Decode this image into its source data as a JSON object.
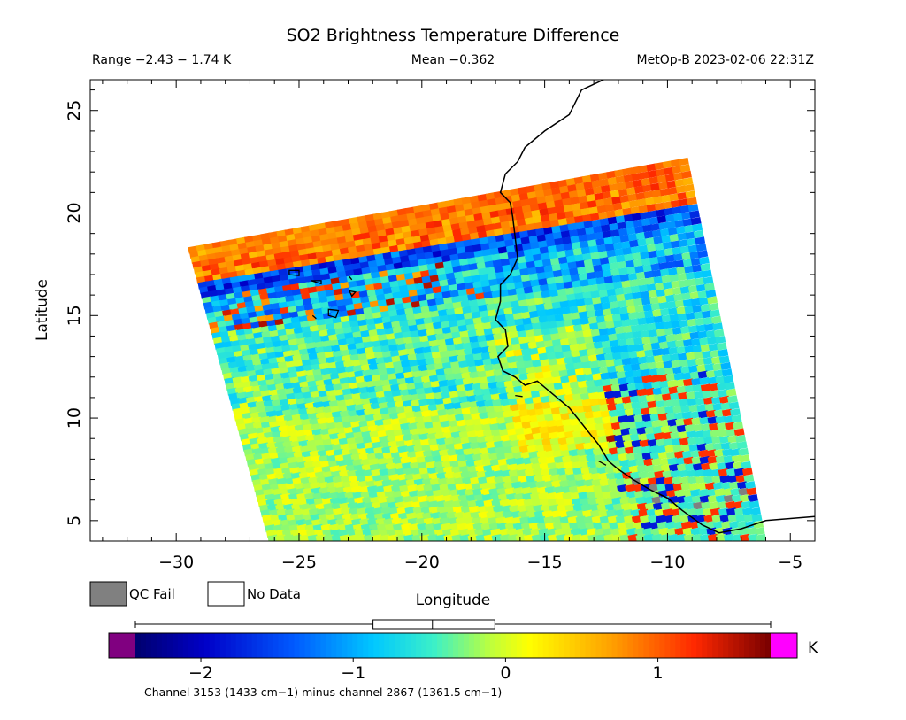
{
  "chart_data": {
    "type": "heatmap",
    "title": "SO2 Brightness Temperature Difference",
    "subtitle": {
      "range": "Range −2.43 − 1.74 K",
      "mean": "Mean −0.362",
      "satellite_time": "MetOp-B 2023-02-06 22:31Z"
    },
    "xlabel": "Longitude",
    "ylabel": "Latitude",
    "xlim": [
      -33.5,
      -4
    ],
    "ylim": [
      4,
      26.5
    ],
    "x_ticks": [
      -30,
      -25,
      -20,
      -15,
      -10,
      -5
    ],
    "x_tick_labels": [
      "−30",
      "−25",
      "−20",
      "−15",
      "−10",
      "−5"
    ],
    "y_ticks": [
      5,
      10,
      15,
      20,
      25
    ],
    "y_tick_labels": [
      "5",
      "10",
      "15",
      "20",
      "25"
    ],
    "swath_corners": {
      "top_left": [
        -29.5,
        18.3
      ],
      "top_right": [
        -9.2,
        22.7
      ],
      "bottom_right": [
        -6.0,
        4.0
      ],
      "bottom_left": [
        -26.2,
        4.0
      ]
    },
    "field_description_zones": [
      {
        "region": "northern swath edge",
        "value_range": [
          0.8,
          1.7
        ]
      },
      {
        "region": "band just south of edge",
        "value_range": [
          -2.0,
          -1.0
        ]
      },
      {
        "region": "central swath",
        "value_range": [
          -1.0,
          0.2
        ]
      },
      {
        "region": "southwest swath",
        "value_range": [
          -0.2,
          0.1
        ]
      }
    ],
    "colorbar": {
      "min": -2.43,
      "max": 1.74,
      "ticks": [
        -2,
        -1,
        0,
        1
      ],
      "tick_labels": [
        "−2",
        "−1",
        "0",
        "1"
      ],
      "unit": "K",
      "box_stats": {
        "whisker_low": -2.43,
        "q1": -0.87,
        "median": -0.48,
        "q3": -0.07,
        "whisker_high": 1.74
      },
      "caption": "Channel 3153 (1433 cm−1) minus channel 2867 (1361.5 cm−1)"
    },
    "legend": [
      {
        "label": "QC Fail",
        "color": "#808080"
      },
      {
        "label": "No Data",
        "color": "#ffffff"
      }
    ],
    "coastline_west_africa": [
      [
        -12.6,
        26.5
      ],
      [
        -13.5,
        26.0
      ],
      [
        -14.0,
        24.8
      ],
      [
        -15.0,
        24.0
      ],
      [
        -15.8,
        23.2
      ],
      [
        -16.1,
        22.5
      ],
      [
        -16.6,
        21.9
      ],
      [
        -16.8,
        21.0
      ],
      [
        -16.4,
        20.5
      ],
      [
        -16.3,
        19.8
      ],
      [
        -16.2,
        18.8
      ],
      [
        -16.1,
        17.8
      ],
      [
        -16.4,
        17.0
      ],
      [
        -16.8,
        16.5
      ],
      [
        -16.8,
        15.7
      ],
      [
        -17.0,
        14.8
      ],
      [
        -16.6,
        14.3
      ],
      [
        -16.5,
        13.5
      ],
      [
        -16.9,
        13.0
      ],
      [
        -16.7,
        12.3
      ],
      [
        -16.2,
        12.0
      ],
      [
        -15.8,
        11.6
      ],
      [
        -15.3,
        11.8
      ],
      [
        -15.0,
        11.5
      ],
      [
        -14.5,
        11.0
      ],
      [
        -14.0,
        10.5
      ],
      [
        -13.6,
        9.9
      ],
      [
        -13.2,
        9.3
      ],
      [
        -12.8,
        8.7
      ],
      [
        -12.4,
        7.9
      ],
      [
        -12.0,
        7.5
      ],
      [
        -11.4,
        7.0
      ],
      [
        -10.7,
        6.5
      ],
      [
        -10.0,
        6.1
      ],
      [
        -9.4,
        5.5
      ],
      [
        -8.6,
        4.8
      ],
      [
        -7.9,
        4.4
      ],
      [
        -7.0,
        4.6
      ],
      [
        -6.0,
        5.0
      ],
      [
        -5.0,
        5.1
      ],
      [
        -4.0,
        5.2
      ]
    ],
    "islands": [
      {
        "name": "Santo Antao",
        "points": [
          [
            -25.4,
            17.2
          ],
          [
            -25.0,
            17.2
          ],
          [
            -25.0,
            16.95
          ],
          [
            -25.4,
            17.0
          ]
        ]
      },
      {
        "name": "Sao Nicolau",
        "points": [
          [
            -24.5,
            16.7
          ],
          [
            -24.1,
            16.7
          ],
          [
            -24.1,
            16.55
          ]
        ]
      },
      {
        "name": "Sal",
        "points": [
          [
            -22.95,
            16.9
          ],
          [
            -22.85,
            16.75
          ]
        ]
      },
      {
        "name": "Boa Vista",
        "points": [
          [
            -22.95,
            16.2
          ],
          [
            -22.7,
            16.15
          ],
          [
            -22.85,
            15.95
          ]
        ]
      },
      {
        "name": "Santiago",
        "points": [
          [
            -23.8,
            15.3
          ],
          [
            -23.4,
            15.25
          ],
          [
            -23.5,
            14.9
          ],
          [
            -23.8,
            15.0
          ]
        ]
      },
      {
        "name": "Fogo",
        "points": [
          [
            -24.45,
            15.0
          ],
          [
            -24.3,
            14.85
          ]
        ]
      },
      {
        "name": "Bissagos",
        "points": [
          [
            -16.2,
            11.1
          ],
          [
            -15.9,
            11.05
          ]
        ]
      },
      {
        "name": "Banana Islands",
        "points": [
          [
            -12.8,
            7.9
          ],
          [
            -12.5,
            7.7
          ]
        ]
      }
    ]
  }
}
